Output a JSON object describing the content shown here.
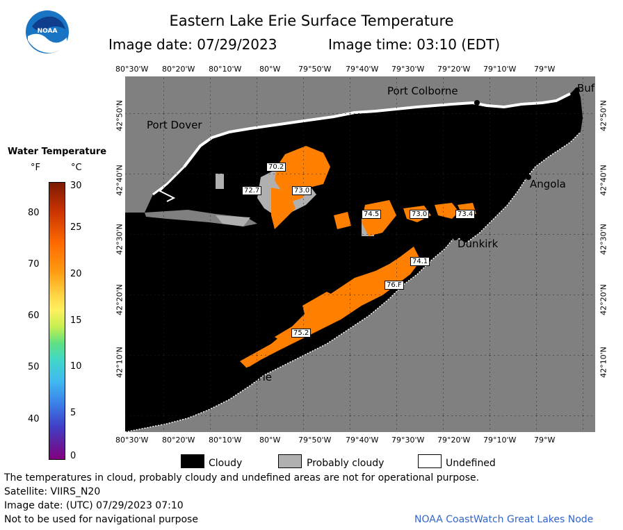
{
  "header": {
    "title": "Eastern Lake Erie Surface Temperature",
    "image_date": "Image date: 07/29/2023",
    "image_time": "Image time: 03:10 (EDT)",
    "logo_text": "NOAA"
  },
  "axes": {
    "x_ticks": [
      "80°30'W",
      "80°20'W",
      "80°10'W",
      "80°W",
      "79°50'W",
      "79°40'W",
      "79°30'W",
      "79°20'W",
      "79°10'W",
      "79°W"
    ],
    "y_ticks": [
      "42°50'N",
      "42°40'N",
      "42°30'N",
      "42°20'N",
      "42°10'N"
    ]
  },
  "colorbar": {
    "title": "Water Temperature",
    "unit_f": "°F",
    "unit_c": "°C",
    "f_ticks": [
      "80",
      "70",
      "60",
      "50",
      "40"
    ],
    "c_ticks": [
      "30",
      "25",
      "20",
      "15",
      "10",
      "5",
      "0"
    ]
  },
  "places": {
    "port_colborne": "Port Colborne",
    "port_dover": "Port Dover",
    "buffalo": "Buf",
    "angola": "Angola",
    "dunkirk": "Dunkirk",
    "erie": "Erie"
  },
  "temp_labels": [
    "70.2",
    "72.7",
    "73.0",
    "74.5",
    "73.0",
    "73.4",
    "74.1",
    "76.F",
    "75.2"
  ],
  "legend": {
    "cloudy": "Cloudy",
    "probably_cloudy": "Probably cloudy",
    "undefined": "Undefined"
  },
  "footer": {
    "disclaimer": "The temperatures in cloud, probably cloudy and undefined areas are not for operational purpose.",
    "satellite": "Satellite: VIIRS_N20",
    "utc_date": "Image date: (UTC) 07/29/2023  07:10",
    "nav_warning": "Not to be used for navigational purpose",
    "credit": "NOAA CoastWatch Great Lakes Node"
  },
  "colors": {
    "land": "#808080",
    "cloud": "#000000",
    "probably_cloudy": "#b0b0b0",
    "water_warm": "#ff8000",
    "credit": "#3366cc"
  }
}
